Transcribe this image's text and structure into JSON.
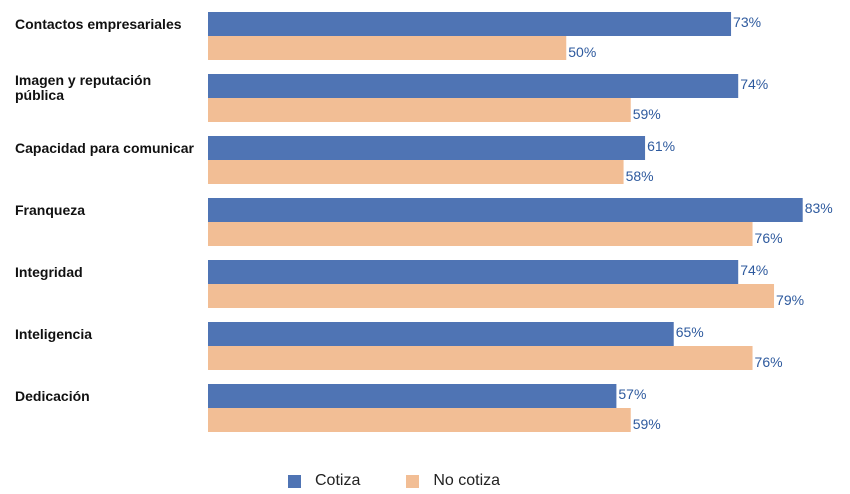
{
  "chart_data": {
    "type": "bar",
    "orientation": "horizontal",
    "categories": [
      "Contactos empresariales",
      "Imagen y reputación pública",
      "Capacidad para comunicar",
      "Franqueza",
      "Integridad",
      "Inteligencia",
      "Dedicación"
    ],
    "series": [
      {
        "name": "Cotiza",
        "color": "#4f74b4",
        "values": [
          73,
          74,
          61,
          83,
          74,
          65,
          57
        ]
      },
      {
        "name": "No cotiza",
        "color": "#f2be95",
        "values": [
          50,
          59,
          58,
          76,
          79,
          76,
          59
        ]
      }
    ],
    "value_labels": [
      [
        "73%",
        "74%",
        "61%",
        "83%",
        "74%",
        "65%",
        "57%"
      ],
      [
        "50%",
        "59%",
        "58%",
        "76%",
        "79%",
        "76%",
        "59%"
      ]
    ],
    "xlim": [
      0,
      100
    ],
    "grid": false,
    "legend_position": "bottom",
    "label_color": "#2e5a9e"
  }
}
